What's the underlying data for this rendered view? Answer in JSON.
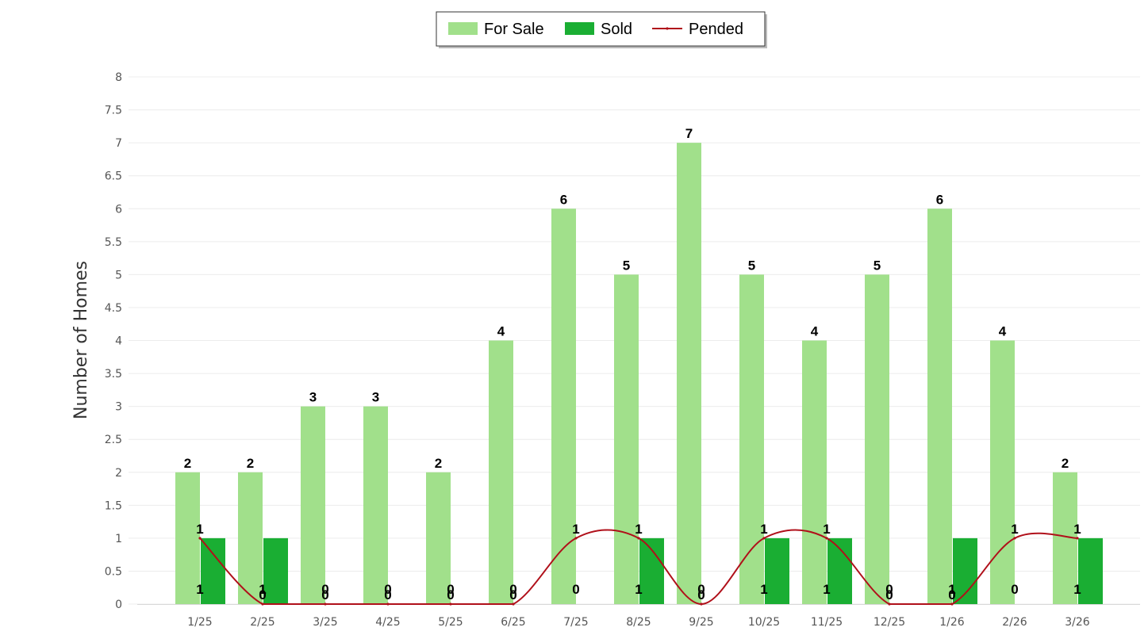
{
  "chart_data": {
    "type": "bar",
    "categories": [
      "1/25",
      "2/25",
      "3/25",
      "4/25",
      "5/25",
      "6/25",
      "7/25",
      "8/25",
      "9/25",
      "10/25",
      "11/25",
      "12/25",
      "1/26",
      "2/26",
      "3/26"
    ],
    "series": [
      {
        "name": "For Sale",
        "kind": "bar",
        "color": "#a1e08b",
        "values": [
          2,
          2,
          3,
          3,
          2,
          4,
          6,
          5,
          7,
          5,
          4,
          5,
          6,
          4,
          2
        ]
      },
      {
        "name": "Sold",
        "kind": "bar",
        "color": "#1aae33",
        "values": [
          1,
          1,
          0,
          0,
          0,
          0,
          0,
          1,
          0,
          1,
          1,
          0,
          1,
          0,
          1
        ]
      },
      {
        "name": "Pended",
        "kind": "line",
        "color": "#b0101a",
        "values": [
          1,
          0,
          0,
          0,
          0,
          0,
          1,
          1,
          0,
          1,
          1,
          0,
          0,
          1,
          1
        ]
      }
    ],
    "title": "",
    "xlabel": "",
    "ylabel": "Number of Homes",
    "ylim": [
      0,
      8
    ],
    "yticks": [
      "0",
      "0.5",
      "1",
      "1.5",
      "2",
      "2.5",
      "3",
      "3.5",
      "4",
      "4.5",
      "5",
      "5.5",
      "6",
      "6.5",
      "7",
      "7.5",
      "8"
    ],
    "grid": true,
    "legend_position": "top-center"
  }
}
